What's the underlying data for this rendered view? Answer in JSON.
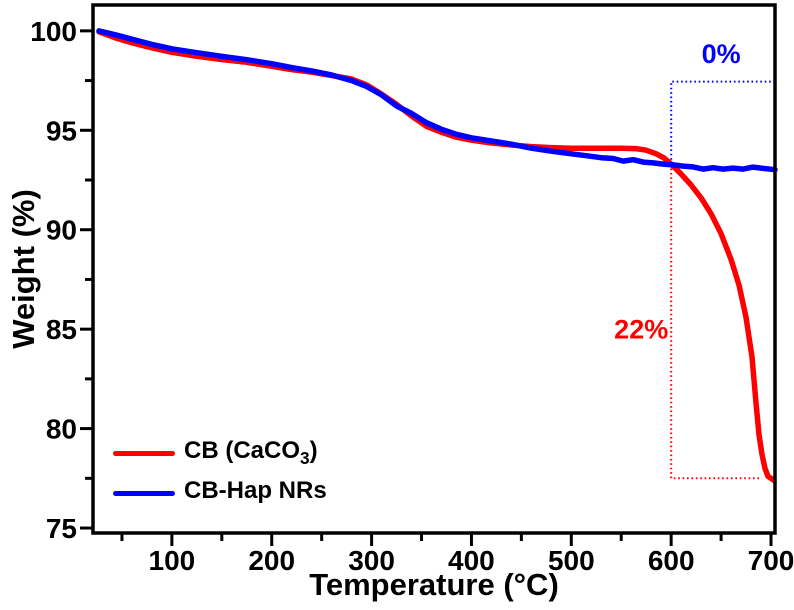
{
  "page": {
    "background": "#ffffff"
  },
  "chart_data": {
    "type": "line",
    "title": "",
    "xlabel": "Temperature (°C)",
    "ylabel": "Weight (%)",
    "xlim": [
      21,
      704
    ],
    "ylim": [
      74.75,
      101.3
    ],
    "x_major_ticks": [
      100,
      200,
      300,
      400,
      500,
      600,
      700
    ],
    "x_minor_ticks": [
      50,
      150,
      250,
      350,
      450,
      550,
      650
    ],
    "y_major_ticks": [
      75,
      80,
      85,
      90,
      95,
      100
    ],
    "y_minor_ticks": [
      77.5,
      82.5,
      87.5,
      92.5,
      97.5
    ],
    "grid": false,
    "axis_color": "#000000",
    "tick_label_color": "#000000",
    "legend_position": "inside lower-left",
    "series": [
      {
        "id": "cb-caco3",
        "name": "CB (CaCO3)",
        "color": "#ff0000",
        "points": [
          [
            27,
            99.95
          ],
          [
            35,
            99.8
          ],
          [
            45,
            99.62
          ],
          [
            60,
            99.4
          ],
          [
            80,
            99.15
          ],
          [
            100,
            98.92
          ],
          [
            125,
            98.72
          ],
          [
            150,
            98.56
          ],
          [
            175,
            98.42
          ],
          [
            200,
            98.22
          ],
          [
            220,
            98.05
          ],
          [
            240,
            97.92
          ],
          [
            260,
            97.75
          ],
          [
            280,
            97.58
          ],
          [
            295,
            97.28
          ],
          [
            310,
            96.82
          ],
          [
            325,
            96.3
          ],
          [
            340,
            95.72
          ],
          [
            355,
            95.2
          ],
          [
            370,
            94.9
          ],
          [
            385,
            94.65
          ],
          [
            400,
            94.5
          ],
          [
            420,
            94.36
          ],
          [
            440,
            94.26
          ],
          [
            460,
            94.18
          ],
          [
            480,
            94.13
          ],
          [
            500,
            94.1
          ],
          [
            525,
            94.1
          ],
          [
            550,
            94.1
          ],
          [
            565,
            94.08
          ],
          [
            575,
            94.0
          ],
          [
            585,
            93.82
          ],
          [
            593,
            93.6
          ],
          [
            600,
            93.3
          ],
          [
            610,
            92.8
          ],
          [
            620,
            92.25
          ],
          [
            630,
            91.6
          ],
          [
            640,
            90.8
          ],
          [
            650,
            89.8
          ],
          [
            660,
            88.5
          ],
          [
            668,
            87.2
          ],
          [
            675,
            85.6
          ],
          [
            681,
            83.6
          ],
          [
            685,
            81.3
          ],
          [
            688,
            79.7
          ],
          [
            691,
            78.7
          ],
          [
            694,
            78.0
          ],
          [
            697,
            77.6
          ],
          [
            703,
            77.4
          ]
        ]
      },
      {
        "id": "cb-hap-nrs",
        "name": "CB-Hap NRs",
        "color": "#0000ff",
        "points": [
          [
            27,
            100.0
          ],
          [
            35,
            99.9
          ],
          [
            45,
            99.78
          ],
          [
            60,
            99.58
          ],
          [
            80,
            99.32
          ],
          [
            100,
            99.1
          ],
          [
            125,
            98.9
          ],
          [
            150,
            98.72
          ],
          [
            175,
            98.55
          ],
          [
            200,
            98.35
          ],
          [
            220,
            98.15
          ],
          [
            240,
            97.98
          ],
          [
            260,
            97.78
          ],
          [
            280,
            97.5
          ],
          [
            295,
            97.2
          ],
          [
            310,
            96.78
          ],
          [
            325,
            96.22
          ],
          [
            340,
            95.85
          ],
          [
            355,
            95.38
          ],
          [
            370,
            95.05
          ],
          [
            385,
            94.8
          ],
          [
            400,
            94.62
          ],
          [
            420,
            94.46
          ],
          [
            440,
            94.3
          ],
          [
            460,
            94.1
          ],
          [
            480,
            93.95
          ],
          [
            500,
            93.82
          ],
          [
            515,
            93.72
          ],
          [
            530,
            93.62
          ],
          [
            542,
            93.58
          ],
          [
            552,
            93.45
          ],
          [
            562,
            93.52
          ],
          [
            572,
            93.4
          ],
          [
            582,
            93.36
          ],
          [
            592,
            93.3
          ],
          [
            602,
            93.26
          ],
          [
            612,
            93.2
          ],
          [
            622,
            93.16
          ],
          [
            632,
            93.05
          ],
          [
            642,
            93.12
          ],
          [
            652,
            93.05
          ],
          [
            662,
            93.1
          ],
          [
            672,
            93.05
          ],
          [
            682,
            93.15
          ],
          [
            690,
            93.1
          ],
          [
            704,
            93.02
          ]
        ]
      }
    ],
    "guides": [
      {
        "id": "hap-zero-loss-box",
        "color": "#0000ff",
        "style": "dotted",
        "points": [
          [
            600,
            93.3
          ],
          [
            600,
            97.45
          ],
          [
            704,
            97.45
          ]
        ]
      },
      {
        "id": "cb-22pct-loss-box",
        "color": "#ff0000",
        "style": "dotted",
        "points": [
          [
            600,
            93.3
          ],
          [
            600,
            77.5
          ],
          [
            690,
            77.5
          ]
        ]
      }
    ],
    "annotations": [
      {
        "id": "hap-loss-label",
        "text": "0%",
        "color": "#0000ff",
        "x": 650,
        "y": 98.85
      },
      {
        "id": "cb-loss-label",
        "text": "22%",
        "color": "#ff0000",
        "x": 570,
        "y": 85.0
      }
    ]
  },
  "legend": {
    "items": [
      {
        "pre": "CB (CaCO",
        "sub": "3",
        "post": ")",
        "color": "#ff0000"
      },
      {
        "pre": "CB-Hap NRs",
        "sub": "",
        "post": "",
        "color": "#0000ff"
      }
    ]
  }
}
